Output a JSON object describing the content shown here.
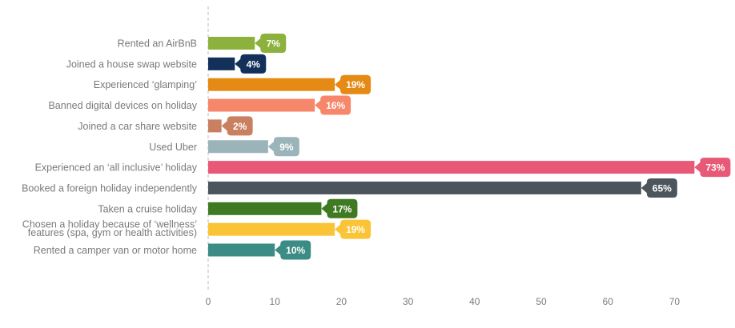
{
  "chart_data": {
    "type": "bar",
    "orientation": "horizontal",
    "categories": [
      "Rented an AirBnB",
      "Joined a house swap website",
      "Experienced ‘glamping’",
      "Banned digital devices on holiday",
      "Joined a car share website",
      "Used Uber",
      "Experienced an ‘all inclusive’ holiday",
      "Booked a foreign holiday independently",
      "Taken a cruise holiday",
      "Chosen a holiday because of ‘wellness’ features (spa, gym or health activities)",
      "Rented a camper van or motor home"
    ],
    "category_lines": [
      [
        "Rented an AirBnB"
      ],
      [
        "Joined a house swap website"
      ],
      [
        "Experienced ‘glamping’"
      ],
      [
        "Banned digital devices on holiday"
      ],
      [
        "Joined a car share website"
      ],
      [
        "Used Uber"
      ],
      [
        "Experienced an ‘all inclusive’ holiday"
      ],
      [
        "Booked a foreign holiday independently"
      ],
      [
        "Taken a cruise holiday"
      ],
      [
        "Chosen a holiday because of ‘wellness’",
        "features (spa, gym or health activities)"
      ],
      [
        "Rented a camper van or motor home"
      ]
    ],
    "values": [
      7,
      4,
      19,
      16,
      2,
      9,
      73,
      65,
      17,
      19,
      10
    ],
    "value_labels": [
      "7%",
      "4%",
      "19%",
      "16%",
      "2%",
      "9%",
      "73%",
      "65%",
      "17%",
      "19%",
      "10%"
    ],
    "colors": [
      "#8cb13c",
      "#13305a",
      "#e58a14",
      "#f7876b",
      "#c98060",
      "#9bb4ba",
      "#e85877",
      "#4b555b",
      "#3f7a22",
      "#fbc336",
      "#3a8c84"
    ],
    "xlim": [
      0,
      75
    ],
    "xticks": [
      0,
      10,
      20,
      30,
      40,
      50,
      60,
      70
    ],
    "xtick_labels": [
      "0",
      "10",
      "20",
      "30",
      "40",
      "50",
      "60",
      "70"
    ],
    "title": "",
    "xlabel": "",
    "ylabel": "",
    "grid": false,
    "legend": "none",
    "axis_color": "#bbbbbb",
    "label_color": "#7a7a7a"
  }
}
